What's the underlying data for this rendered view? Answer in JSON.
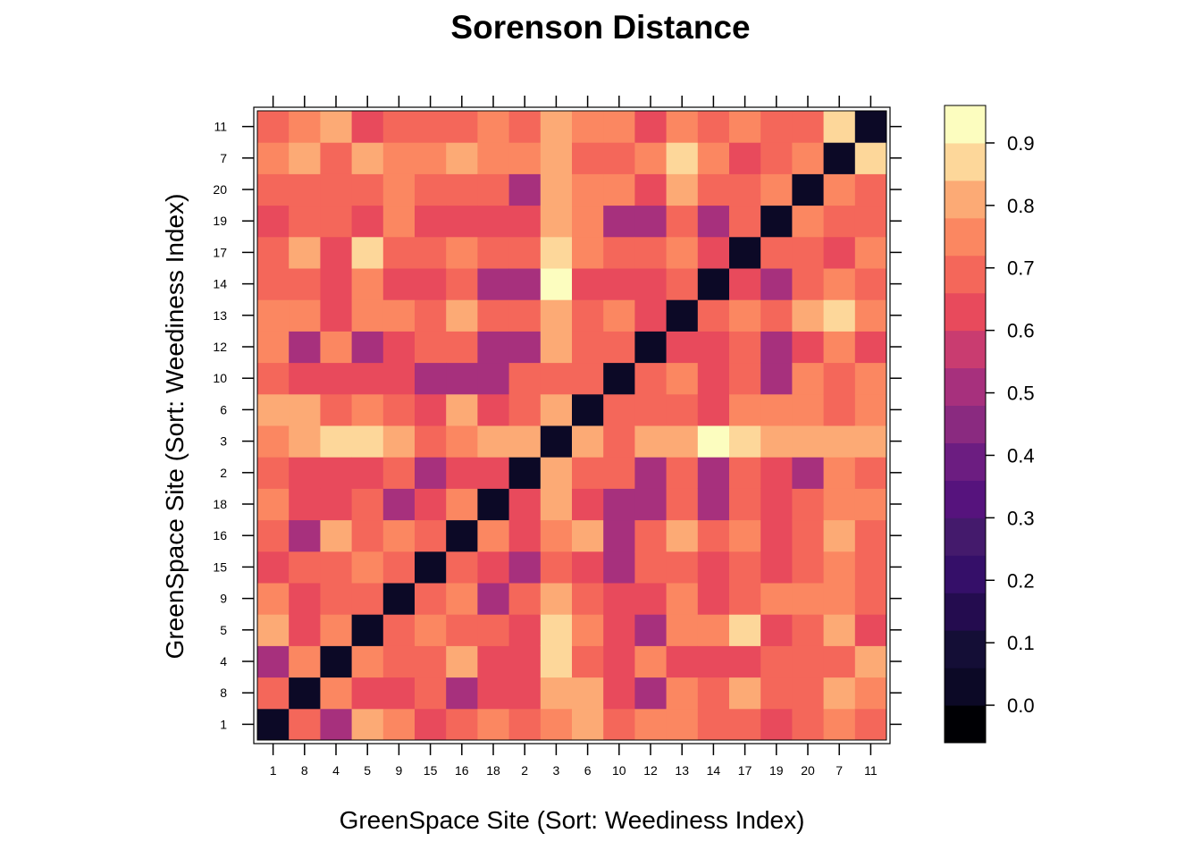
{
  "chart_data": {
    "type": "heatmap",
    "title": "Sorenson Distance",
    "xlabel": "GreenSpace Site (Sort: Weediness Index)",
    "ylabel": "GreenSpace Site (Sort: Weediness Index)",
    "categories": [
      "1",
      "8",
      "4",
      "5",
      "9",
      "15",
      "16",
      "18",
      "2",
      "3",
      "6",
      "10",
      "12",
      "13",
      "14",
      "17",
      "19",
      "20",
      "7",
      "11"
    ],
    "color_scale": {
      "breaks": [
        -0.06,
        0.0,
        0.06,
        0.12,
        0.18,
        0.24,
        0.3,
        0.36,
        0.42,
        0.48,
        0.54,
        0.6,
        0.66,
        0.72,
        0.78,
        0.84,
        0.9,
        0.96
      ],
      "colors": [
        "#000004",
        "#0c0926",
        "#140e36",
        "#240c4f",
        "#350f69",
        "#441a6c",
        "#56137d",
        "#6c1d81",
        "#8a2a80",
        "#a7307d",
        "#c93c70",
        "#e84a5c",
        "#f4675a",
        "#fb8761",
        "#fcaa75",
        "#fdd79a",
        "#fcfdbf"
      ],
      "ticks": [
        0.0,
        0.1,
        0.2,
        0.3,
        0.4,
        0.5,
        0.6,
        0.7,
        0.8,
        0.9
      ],
      "tick_labels": [
        "0.0",
        "0.1",
        "0.2",
        "0.3",
        "0.4",
        "0.5",
        "0.6",
        "0.7",
        "0.8",
        "0.9"
      ]
    },
    "matrix": [
      [
        0,
        0.7,
        0.53,
        0.78,
        0.72,
        0.6,
        0.66,
        0.72,
        0.66,
        0.72,
        0.78,
        0.66,
        0.72,
        0.72,
        0.66,
        0.66,
        0.6,
        0.66,
        0.72,
        0.66
      ],
      [
        0.7,
        0,
        0.72,
        0.6,
        0.6,
        0.66,
        0.53,
        0.6,
        0.6,
        0.78,
        0.78,
        0.6,
        0.53,
        0.72,
        0.66,
        0.78,
        0.66,
        0.66,
        0.78,
        0.72
      ],
      [
        0.53,
        0.72,
        0,
        0.72,
        0.66,
        0.66,
        0.78,
        0.6,
        0.6,
        0.84,
        0.66,
        0.6,
        0.72,
        0.6,
        0.6,
        0.6,
        0.66,
        0.66,
        0.66,
        0.78
      ],
      [
        0.78,
        0.6,
        0.72,
        0,
        0.66,
        0.72,
        0.66,
        0.66,
        0.6,
        0.84,
        0.72,
        0.6,
        0.53,
        0.72,
        0.72,
        0.84,
        0.6,
        0.66,
        0.78,
        0.6
      ],
      [
        0.72,
        0.6,
        0.66,
        0.66,
        0,
        0.66,
        0.72,
        0.53,
        0.66,
        0.78,
        0.66,
        0.6,
        0.6,
        0.72,
        0.6,
        0.66,
        0.72,
        0.72,
        0.72,
        0.66
      ],
      [
        0.6,
        0.66,
        0.66,
        0.72,
        0.66,
        0,
        0.66,
        0.6,
        0.53,
        0.66,
        0.6,
        0.53,
        0.66,
        0.66,
        0.6,
        0.66,
        0.6,
        0.66,
        0.72,
        0.66
      ],
      [
        0.66,
        0.53,
        0.78,
        0.66,
        0.72,
        0.66,
        0,
        0.72,
        0.6,
        0.72,
        0.78,
        0.53,
        0.66,
        0.78,
        0.66,
        0.72,
        0.6,
        0.66,
        0.78,
        0.66
      ],
      [
        0.72,
        0.6,
        0.6,
        0.66,
        0.53,
        0.6,
        0.72,
        0,
        0.6,
        0.78,
        0.6,
        0.53,
        0.53,
        0.66,
        0.53,
        0.66,
        0.6,
        0.66,
        0.72,
        0.72
      ],
      [
        0.66,
        0.6,
        0.6,
        0.6,
        0.66,
        0.53,
        0.6,
        0.6,
        0,
        0.78,
        0.66,
        0.66,
        0.53,
        0.66,
        0.53,
        0.66,
        0.6,
        0.53,
        0.72,
        0.66
      ],
      [
        0.72,
        0.78,
        0.84,
        0.84,
        0.78,
        0.66,
        0.72,
        0.78,
        0.78,
        0,
        0.78,
        0.66,
        0.78,
        0.78,
        0.91,
        0.84,
        0.78,
        0.78,
        0.78,
        0.78
      ],
      [
        0.78,
        0.78,
        0.66,
        0.72,
        0.66,
        0.6,
        0.78,
        0.6,
        0.66,
        0.78,
        0,
        0.66,
        0.66,
        0.66,
        0.6,
        0.72,
        0.72,
        0.72,
        0.66,
        0.72
      ],
      [
        0.66,
        0.6,
        0.6,
        0.6,
        0.6,
        0.53,
        0.53,
        0.53,
        0.66,
        0.66,
        0.66,
        0,
        0.66,
        0.72,
        0.6,
        0.66,
        0.53,
        0.72,
        0.66,
        0.72
      ],
      [
        0.72,
        0.53,
        0.72,
        0.53,
        0.6,
        0.66,
        0.66,
        0.53,
        0.53,
        0.78,
        0.66,
        0.66,
        0,
        0.6,
        0.6,
        0.66,
        0.53,
        0.6,
        0.72,
        0.6
      ],
      [
        0.72,
        0.72,
        0.6,
        0.72,
        0.72,
        0.66,
        0.78,
        0.66,
        0.66,
        0.78,
        0.66,
        0.72,
        0.6,
        0,
        0.66,
        0.72,
        0.66,
        0.78,
        0.84,
        0.72
      ],
      [
        0.66,
        0.66,
        0.6,
        0.72,
        0.6,
        0.6,
        0.66,
        0.53,
        0.53,
        0.91,
        0.6,
        0.6,
        0.6,
        0.66,
        0,
        0.6,
        0.53,
        0.66,
        0.72,
        0.66
      ],
      [
        0.66,
        0.78,
        0.6,
        0.84,
        0.66,
        0.66,
        0.72,
        0.66,
        0.66,
        0.84,
        0.72,
        0.66,
        0.66,
        0.72,
        0.6,
        0,
        0.66,
        0.66,
        0.6,
        0.72
      ],
      [
        0.6,
        0.66,
        0.66,
        0.6,
        0.72,
        0.6,
        0.6,
        0.6,
        0.6,
        0.78,
        0.72,
        0.53,
        0.53,
        0.66,
        0.53,
        0.66,
        0,
        0.72,
        0.66,
        0.66
      ],
      [
        0.66,
        0.66,
        0.66,
        0.66,
        0.72,
        0.66,
        0.66,
        0.66,
        0.53,
        0.78,
        0.72,
        0.72,
        0.6,
        0.78,
        0.66,
        0.66,
        0.72,
        0,
        0.72,
        0.66
      ],
      [
        0.72,
        0.78,
        0.66,
        0.78,
        0.72,
        0.72,
        0.78,
        0.72,
        0.72,
        0.78,
        0.66,
        0.66,
        0.72,
        0.84,
        0.72,
        0.6,
        0.66,
        0.72,
        0,
        0.84
      ],
      [
        0.66,
        0.72,
        0.78,
        0.6,
        0.66,
        0.66,
        0.66,
        0.72,
        0.66,
        0.78,
        0.72,
        0.72,
        0.6,
        0.72,
        0.66,
        0.72,
        0.66,
        0.66,
        0.84,
        0
      ]
    ]
  }
}
